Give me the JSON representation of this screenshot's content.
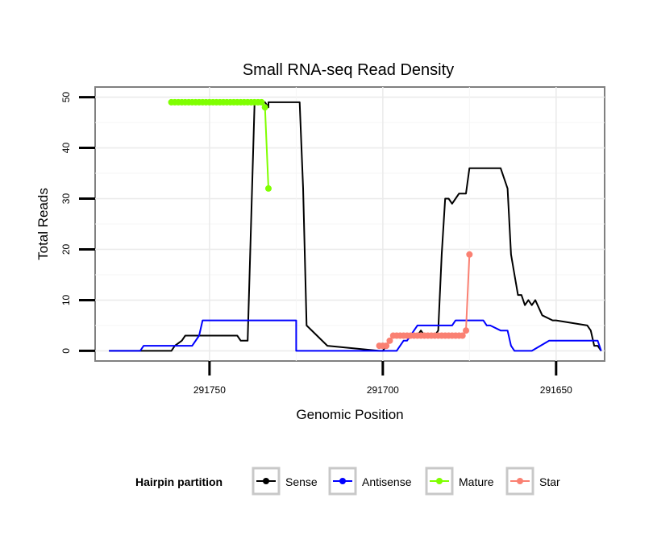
{
  "chart_data": {
    "type": "line",
    "title": "Small RNA-seq Read Density",
    "xlabel": "Genomic Position",
    "ylabel": "Total Reads",
    "x_reversed": true,
    "xlim": [
      291783,
      291636
    ],
    "ylim": [
      -2,
      52
    ],
    "x_ticks": [
      291750,
      291700,
      291650
    ],
    "x_tick_labels": [
      "291750",
      "291700",
      "291650"
    ],
    "y_ticks": [
      0,
      10,
      20,
      30,
      40,
      50
    ],
    "y_tick_labels": [
      "0",
      "10",
      "20",
      "30",
      "40",
      "50"
    ],
    "grid": true,
    "legend": {
      "title": "Hairpin partition",
      "placement": "bottom",
      "entries": [
        {
          "label": "Sense",
          "color": "#000000"
        },
        {
          "label": "Antisense",
          "color": "#0000ff"
        },
        {
          "label": "Mature",
          "color": "#7fff00"
        },
        {
          "label": "Star",
          "color": "#fa8072"
        }
      ]
    },
    "series": [
      {
        "name": "Sense",
        "color": "#000000",
        "marker": false,
        "x": [
          291779,
          291761,
          291760,
          291758,
          291757,
          291755,
          291745,
          291742,
          291741,
          291739,
          291737,
          291734,
          291733,
          291733,
          291724,
          291723,
          291722,
          291716,
          291701,
          291701,
          291700,
          291699,
          291698,
          291697,
          291696,
          291695,
          291694,
          291693,
          291692,
          291691,
          291690,
          291689,
          291688,
          291687,
          291686,
          291685,
          291684,
          291683,
          291682,
          291681,
          291680,
          291679,
          291678,
          291677,
          291676,
          291675,
          291672,
          291667,
          291666,
          291665,
          291664,
          291663,
          291662,
          291661,
          291660,
          291659,
          291658,
          291657,
          291656,
          291654,
          291651,
          291650,
          291641,
          291640,
          291639,
          291638,
          291637
        ],
        "y": [
          0,
          0,
          1,
          2,
          3,
          3,
          3,
          3,
          2,
          2,
          49,
          49,
          48,
          49,
          49,
          32,
          5,
          1,
          0,
          0,
          0,
          1,
          2,
          3,
          3,
          3,
          3,
          3,
          3,
          3,
          3,
          4,
          3,
          3,
          3,
          3,
          4,
          19,
          30,
          30,
          29,
          30,
          31,
          31,
          31,
          36,
          36,
          36,
          36,
          34,
          32,
          19,
          15,
          11,
          11,
          9,
          10,
          9,
          10,
          7,
          6,
          6,
          5,
          4,
          1,
          1,
          0
        ]
      },
      {
        "name": "Antisense",
        "color": "#0000ff",
        "marker": false,
        "x": [
          291779,
          291770,
          291769,
          291755,
          291753,
          291752,
          291743,
          291740,
          291725,
          291725,
          291713,
          291712,
          291700,
          291696,
          291694,
          291693,
          291690,
          291680,
          291679,
          291671,
          291670,
          291669,
          291666,
          291664,
          291663,
          291662,
          291658,
          291657,
          291652,
          291650,
          291638,
          291637
        ],
        "y": [
          0,
          0,
          1,
          1,
          3,
          6,
          6,
          6,
          6,
          0,
          0,
          0,
          0,
          0,
          2,
          2,
          5,
          5,
          6,
          6,
          5,
          5,
          4,
          4,
          1,
          0,
          0,
          0,
          2,
          2,
          2,
          0
        ]
      },
      {
        "name": "Mature",
        "color": "#7fff00",
        "marker": true,
        "x": [
          291761,
          291760,
          291759,
          291758,
          291757,
          291756,
          291755,
          291754,
          291753,
          291752,
          291751,
          291750,
          291749,
          291748,
          291747,
          291746,
          291745,
          291744,
          291743,
          291742,
          291741,
          291740,
          291739,
          291738,
          291737,
          291736,
          291735,
          291734,
          291733
        ],
        "y": [
          49,
          49,
          49,
          49,
          49,
          49,
          49,
          49,
          49,
          49,
          49,
          49,
          49,
          49,
          49,
          49,
          49,
          49,
          49,
          49,
          49,
          49,
          49,
          49,
          49,
          49,
          49,
          48,
          32
        ]
      },
      {
        "name": "Star",
        "color": "#fa8072",
        "marker": true,
        "x": [
          291701,
          291700,
          291699,
          291698,
          291697,
          291696,
          291695,
          291694,
          291693,
          291692,
          291691,
          291690,
          291689,
          291688,
          291687,
          291686,
          291685,
          291684,
          291683,
          291682,
          291681,
          291680,
          291679,
          291678,
          291677,
          291676,
          291675
        ],
        "y": [
          1,
          1,
          1,
          2,
          3,
          3,
          3,
          3,
          3,
          3,
          3,
          3,
          3,
          3,
          3,
          3,
          3,
          3,
          3,
          3,
          3,
          3,
          3,
          3,
          3,
          4,
          19
        ]
      }
    ]
  }
}
